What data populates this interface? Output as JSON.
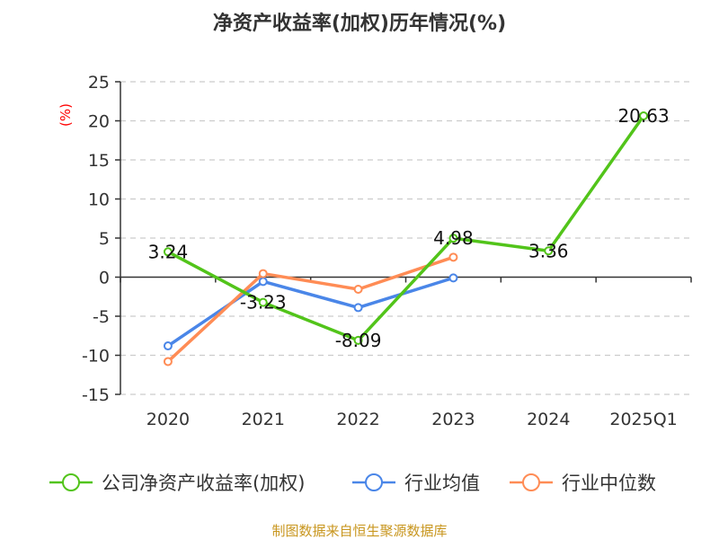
{
  "chart_data": {
    "type": "line",
    "title": "净资产收益率(加权)历年情况(%)",
    "ylabel": "(%)",
    "xlabel": "",
    "categories": [
      "2020",
      "2021",
      "2022",
      "2023",
      "2024",
      "2025Q1"
    ],
    "ylim": [
      -15,
      25
    ],
    "yticks": [
      25,
      20,
      15,
      10,
      5,
      0,
      -5,
      -10,
      -15
    ],
    "grid": true,
    "legend_position": "bottom",
    "series": [
      {
        "name": "公司净资产收益率(加权)",
        "color": "#52c41a",
        "values": [
          3.24,
          -3.23,
          -8.09,
          4.98,
          3.36,
          20.63
        ],
        "labels": [
          "3.24",
          "-3.23",
          "-8.09",
          "4.98",
          "3.36",
          "20.63"
        ]
      },
      {
        "name": "行业均值",
        "color": "#4a86e8",
        "values": [
          -8.8,
          -0.56,
          -3.9,
          -0.1,
          null,
          null
        ]
      },
      {
        "name": "行业中位数",
        "color": "#ff8c55",
        "values": [
          -10.8,
          0.45,
          -1.55,
          2.55,
          null,
          null
        ]
      }
    ]
  },
  "source": "制图数据来自恒生聚源数据库",
  "colors": {
    "title": "#333333",
    "ylabel": "#ff0000",
    "source": "#c8961e"
  }
}
